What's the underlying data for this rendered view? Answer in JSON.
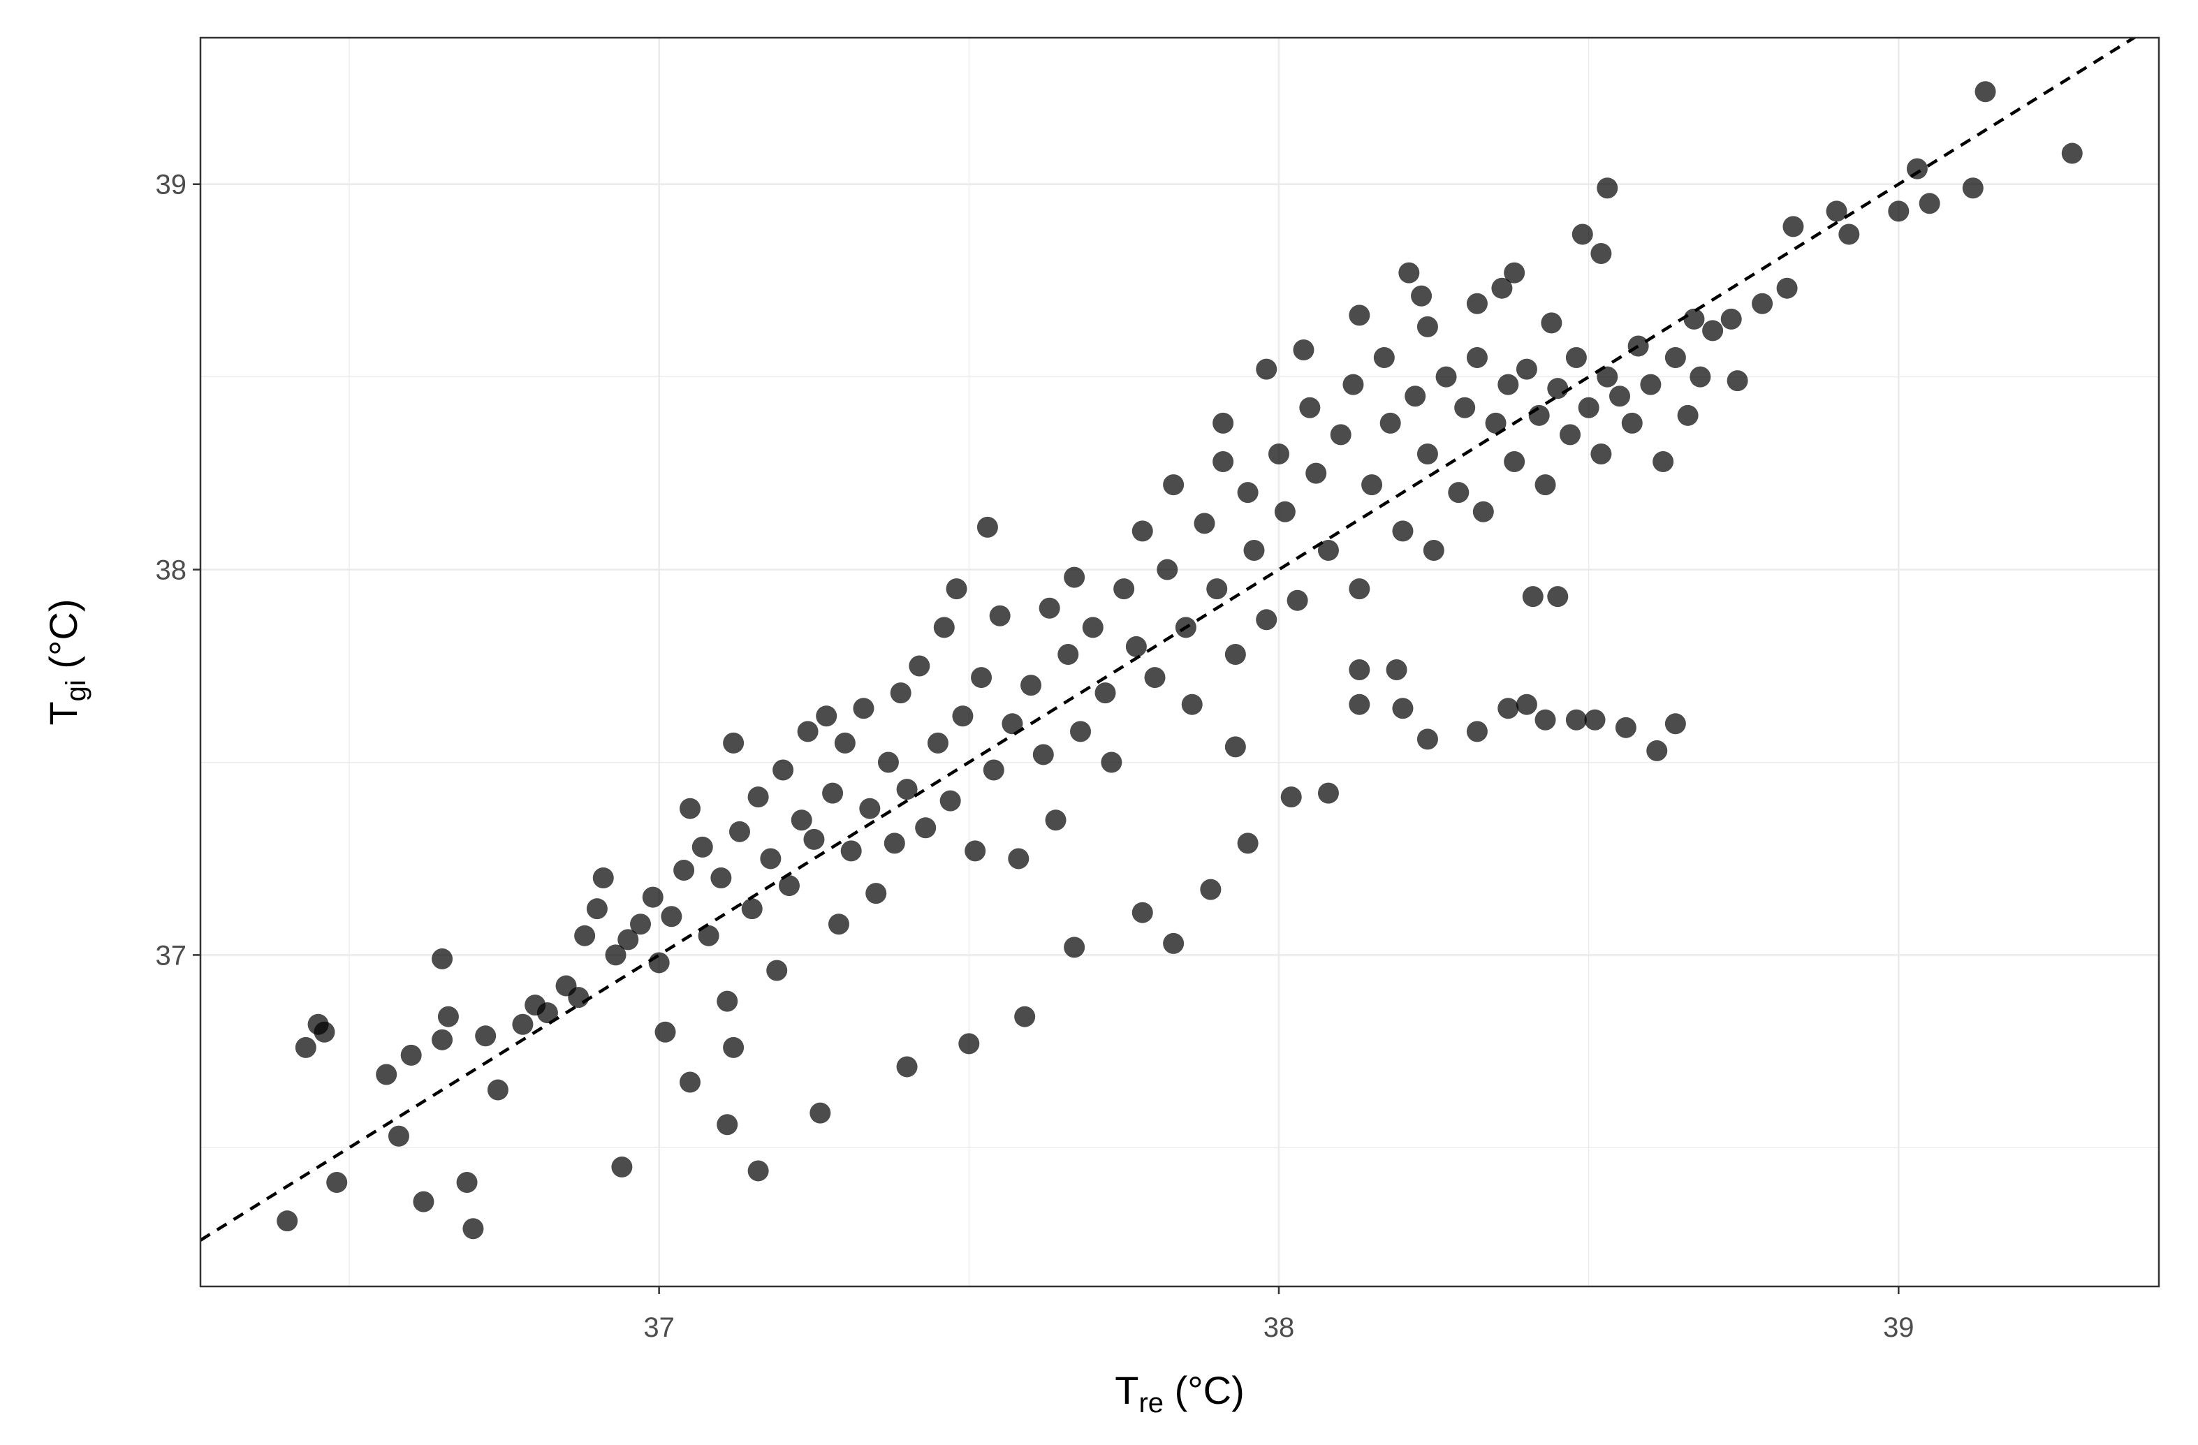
{
  "chart_data": {
    "type": "scatter",
    "x_label": {
      "main": "T",
      "sub": "re",
      "unit": " (°C)"
    },
    "y_label": {
      "main": "T",
      "sub": "gi",
      "unit": " (°C)"
    },
    "xlim": [
      36.26,
      39.42
    ],
    "ylim": [
      36.14,
      39.38
    ],
    "xticks": [
      37,
      38,
      39
    ],
    "yticks": [
      37,
      38,
      39
    ],
    "x_minor_ticks": [
      36.5,
      37.5,
      38.5
    ],
    "y_minor_ticks": [
      36.5,
      37.5,
      38.5
    ],
    "grid": true,
    "reference_line": {
      "slope": 1,
      "intercept": 0,
      "style": "dashed",
      "color": "#000000"
    },
    "series": [
      {
        "color": "#000000",
        "opacity": 0.7,
        "x": [
          36.4,
          36.43,
          36.45,
          36.46,
          36.48,
          36.56,
          36.58,
          36.6,
          36.62,
          36.65,
          36.65,
          36.66,
          36.69,
          36.7,
          36.72,
          36.74,
          36.94,
          37.01,
          37.05,
          37.11,
          37.12,
          37.16,
          37.26,
          37.4,
          37.5,
          37.59,
          37.67,
          37.78,
          37.83,
          37.89,
          37.95,
          38.02,
          38.08,
          37.93,
          37.53,
          38.13,
          38.2,
          38.24,
          38.32,
          38.37,
          38.4,
          38.43,
          38.48,
          38.51,
          38.56,
          38.61,
          38.64,
          38.45,
          38.41,
          38.19,
          38.13,
          38.53,
          38.49,
          38.52,
          39.14,
          39.28,
          39.03,
          39.12,
          39.05,
          39.0,
          38.9,
          38.92,
          38.83,
          38.82,
          38.78,
          38.73,
          38.67,
          38.74,
          38.21,
          38.23,
          38.13,
          38.04,
          37.98,
          38.38,
          38.36,
          38.32,
          38.44,
          38.24,
          37.91,
          36.78,
          36.8,
          36.82,
          36.85,
          36.87,
          36.88,
          36.9,
          36.91,
          36.93,
          36.95,
          36.97,
          36.99,
          37.0,
          37.02,
          37.04,
          37.05,
          37.07,
          37.08,
          37.1,
          37.11,
          37.12,
          37.13,
          37.15,
          37.16,
          37.18,
          37.19,
          37.2,
          37.21,
          37.23,
          37.24,
          37.25,
          37.27,
          37.28,
          37.29,
          37.3,
          37.31,
          37.33,
          37.34,
          37.35,
          37.37,
          37.38,
          37.39,
          37.4,
          37.42,
          37.43,
          37.45,
          37.46,
          37.47,
          37.48,
          37.49,
          37.51,
          37.52,
          37.54,
          37.55,
          37.57,
          37.58,
          37.6,
          37.62,
          37.63,
          37.64,
          37.66,
          37.67,
          37.68,
          37.7,
          37.72,
          37.73,
          37.75,
          37.77,
          37.78,
          37.8,
          37.82,
          37.83,
          37.85,
          37.86,
          37.88,
          37.9,
          37.91,
          37.93,
          37.95,
          37.96,
          37.98,
          38.0,
          38.01,
          38.03,
          38.05,
          38.06,
          38.08,
          38.1,
          38.12,
          38.13,
          38.15,
          38.17,
          38.18,
          38.2,
          38.22,
          38.24,
          38.25,
          38.27,
          38.29,
          38.3,
          38.32,
          38.33,
          38.35,
          38.37,
          38.38,
          38.4,
          38.42,
          38.43,
          38.45,
          38.47,
          38.48,
          38.5,
          38.52,
          38.53,
          38.55,
          38.57,
          38.58,
          38.6,
          38.62,
          38.64,
          38.66,
          38.68,
          38.7
        ],
        "values": [
          36.31,
          36.76,
          36.82,
          36.8,
          36.41,
          36.69,
          36.53,
          36.74,
          36.36,
          36.99,
          36.78,
          36.84,
          36.41,
          36.29,
          36.79,
          36.65,
          36.45,
          36.8,
          36.67,
          36.56,
          36.76,
          36.44,
          36.59,
          36.71,
          36.77,
          36.84,
          37.02,
          37.11,
          37.03,
          37.17,
          37.29,
          37.41,
          37.42,
          37.54,
          38.11,
          37.65,
          37.64,
          37.56,
          37.58,
          37.64,
          37.65,
          37.61,
          37.61,
          37.61,
          37.59,
          37.53,
          37.6,
          37.93,
          37.93,
          37.74,
          37.74,
          38.99,
          38.87,
          38.82,
          39.24,
          39.08,
          39.04,
          38.99,
          38.95,
          38.93,
          38.93,
          38.87,
          38.89,
          38.73,
          38.69,
          38.65,
          38.65,
          38.49,
          38.77,
          38.71,
          38.66,
          38.57,
          38.52,
          38.77,
          38.73,
          38.69,
          38.64,
          38.63,
          38.38,
          36.82,
          36.87,
          36.85,
          36.92,
          36.89,
          37.05,
          37.12,
          37.2,
          37.0,
          37.04,
          37.08,
          37.15,
          36.98,
          37.1,
          37.22,
          37.38,
          37.28,
          37.05,
          37.2,
          36.88,
          37.55,
          37.32,
          37.12,
          37.41,
          37.25,
          36.96,
          37.48,
          37.18,
          37.35,
          37.58,
          37.3,
          37.62,
          37.42,
          37.08,
          37.55,
          37.27,
          37.64,
          37.38,
          37.16,
          37.5,
          37.29,
          37.68,
          37.43,
          37.75,
          37.33,
          37.55,
          37.85,
          37.4,
          37.95,
          37.62,
          37.27,
          37.72,
          37.48,
          37.88,
          37.6,
          37.25,
          37.7,
          37.52,
          37.9,
          37.35,
          37.78,
          37.98,
          37.58,
          37.85,
          37.68,
          37.5,
          37.95,
          37.8,
          38.1,
          37.72,
          38.0,
          38.22,
          37.85,
          37.65,
          38.12,
          37.95,
          38.28,
          37.78,
          38.2,
          38.05,
          37.87,
          38.3,
          38.15,
          37.92,
          38.42,
          38.25,
          38.05,
          38.35,
          38.48,
          37.95,
          38.22,
          38.55,
          38.38,
          38.1,
          38.45,
          38.3,
          38.05,
          38.5,
          38.2,
          38.42,
          38.55,
          38.15,
          38.38,
          38.48,
          38.28,
          38.52,
          38.4,
          38.22,
          38.47,
          38.35,
          38.55,
          38.42,
          38.3,
          38.5,
          38.45,
          38.38,
          38.58,
          38.48,
          38.28,
          38.55,
          38.4,
          38.5,
          38.62
        ]
      }
    ]
  }
}
